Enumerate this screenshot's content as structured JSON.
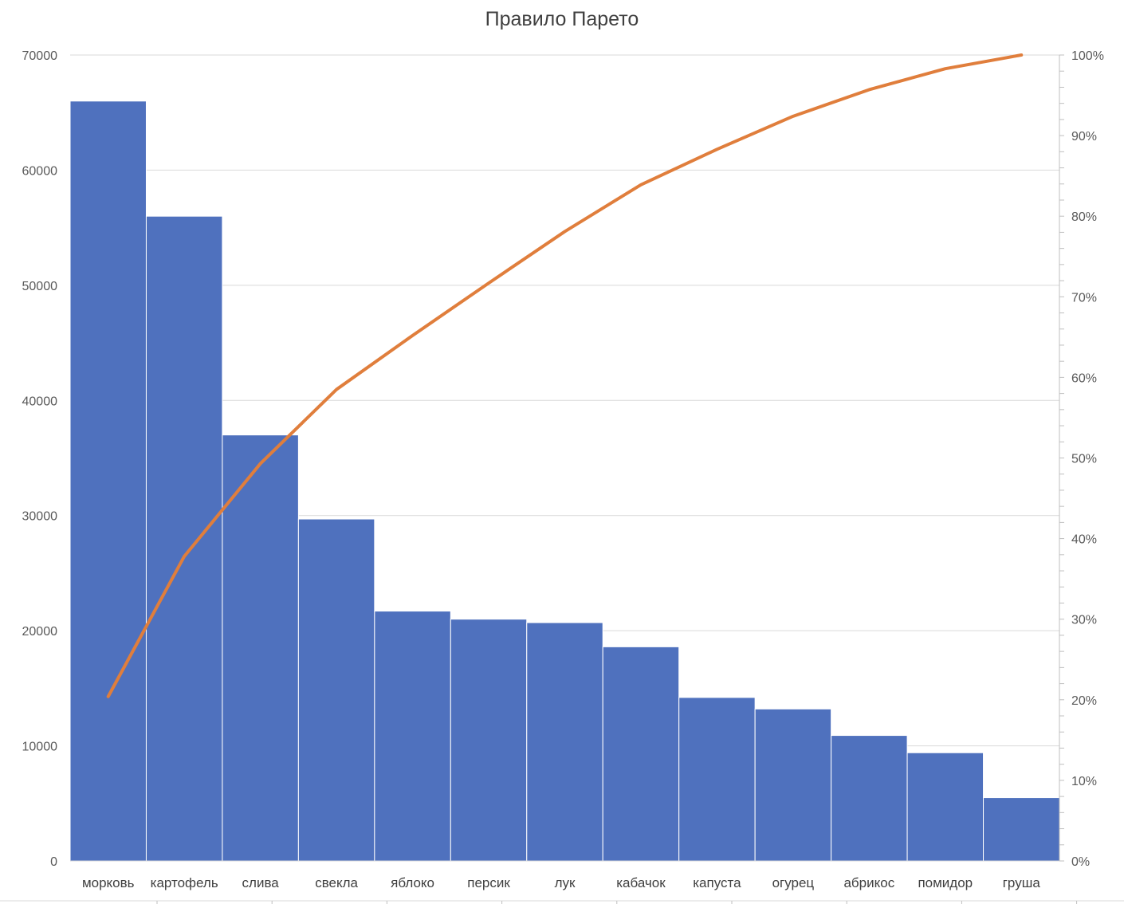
{
  "chart_data": {
    "type": "bar",
    "title": "Правило Парето",
    "categories": [
      "морковь",
      "картофель",
      "слива",
      "свекла",
      "яблоко",
      "персик",
      "лук",
      "кабачок",
      "капуста",
      "огурец",
      "абрикос",
      "помидор",
      "груша"
    ],
    "series": [
      {
        "type": "bar",
        "values": [
          66000,
          56000,
          37000,
          29700,
          21700,
          21000,
          20700,
          18600,
          14200,
          13200,
          10900,
          9400,
          5500
        ],
        "color": "#4F71BE"
      },
      {
        "type": "line",
        "axis": "right",
        "values": [
          20.4,
          37.8,
          49.3,
          58.5,
          65.2,
          71.7,
          78.1,
          83.9,
          88.3,
          92.4,
          95.7,
          98.3,
          100
        ],
        "color": "#E07E3C"
      }
    ],
    "ylim": [
      0,
      70000
    ],
    "y_ticks": [
      "0",
      "10000",
      "20000",
      "30000",
      "40000",
      "50000",
      "60000",
      "70000"
    ],
    "y2lim": [
      0,
      100
    ],
    "y2_ticks": [
      "0%",
      "10%",
      "20%",
      "30%",
      "40%",
      "50%",
      "60%",
      "70%",
      "80%",
      "90%",
      "100%"
    ],
    "grid": true,
    "legend": "none"
  }
}
